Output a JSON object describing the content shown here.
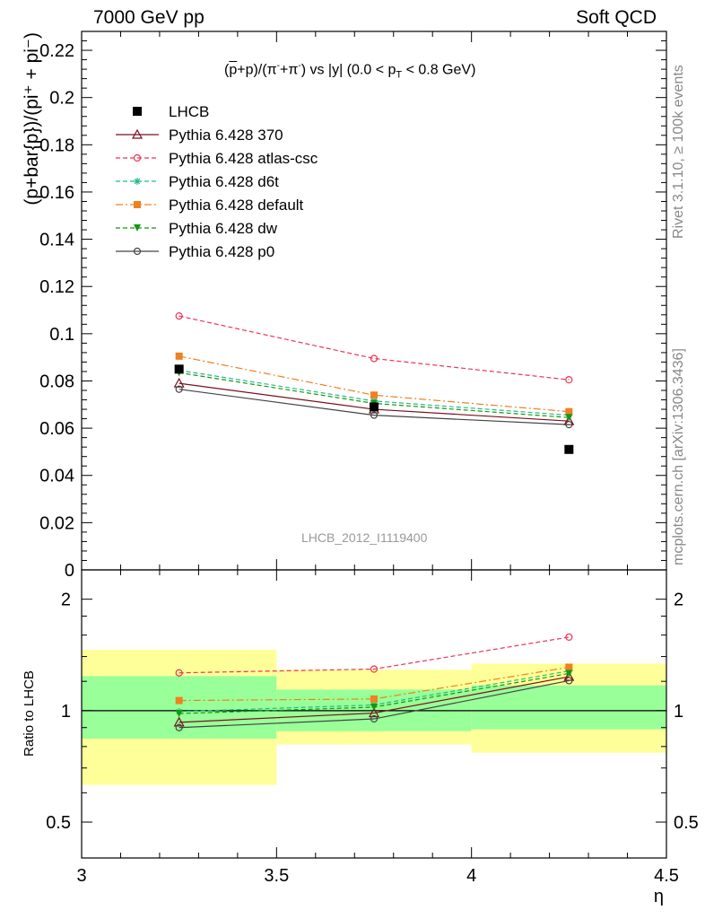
{
  "header": {
    "left": "7000 GeV pp",
    "right": "Soft QCD"
  },
  "side_labels": {
    "rivet": "Rivet 3.1.10, ≥ 100k events",
    "mcplots": "mcplots.cern.ch [arXiv:1306.3436]"
  },
  "watermark": "LHCB_2012_I1119400",
  "colors": {
    "data": "#000000",
    "p370": "#7a0f1f",
    "atlas_csc": "#ee3355",
    "d6t": "#22bb88",
    "default": "#f08020",
    "dw": "#119911",
    "p0": "#444444",
    "band_inner": "#99ff99",
    "band_outer": "#ffff99"
  },
  "chart_data": [
    {
      "panel": "main",
      "type": "line",
      "title": "(p̅+p)/(π⁻+π⁻) vs |y| (0.0 < p_T < 0.8 GeV)",
      "ylabel": "(p+bar{p})/(pi⁺ + pi⁻)",
      "xlim": [
        3.0,
        4.5
      ],
      "ylim": [
        0,
        0.228
      ],
      "yticks": [
        0,
        0.02,
        0.04,
        0.06,
        0.08,
        0.1,
        0.12,
        0.14,
        0.16,
        0.18,
        0.2,
        0.22
      ],
      "ytick_labels": [
        "0",
        "0.02",
        "0.04",
        "0.06",
        "0.08",
        "0.1",
        "0.12",
        "0.14",
        "0.16",
        "0.18",
        "0.2",
        "0.22"
      ],
      "legend_position": "top-left",
      "x": [
        3.25,
        3.75,
        4.25
      ],
      "series": [
        {
          "name": "LHCB",
          "key": "data",
          "marker": "square-filled",
          "line": "none",
          "values": [
            0.085,
            0.069,
            0.051
          ]
        },
        {
          "name": "Pythia 6.428 370",
          "key": "p370",
          "marker": "triangle-open",
          "line": "solid",
          "values": [
            0.079,
            0.068,
            0.063
          ]
        },
        {
          "name": "Pythia 6.428 atlas-csc",
          "key": "atlas_csc",
          "marker": "circle-open",
          "line": "dashed",
          "values": [
            0.1075,
            0.0895,
            0.0805
          ]
        },
        {
          "name": "Pythia 6.428 d6t",
          "key": "d6t",
          "marker": "star",
          "line": "dashed",
          "values": [
            0.0845,
            0.0715,
            0.0655
          ]
        },
        {
          "name": "Pythia 6.428 default",
          "key": "default",
          "marker": "square-filled",
          "line": "dashdot",
          "values": [
            0.0905,
            0.074,
            0.067
          ]
        },
        {
          "name": "Pythia 6.428 dw",
          "key": "dw",
          "marker": "triangle-down-filled",
          "line": "dashed",
          "values": [
            0.0835,
            0.0705,
            0.0645
          ]
        },
        {
          "name": "Pythia 6.428 p0",
          "key": "p0",
          "marker": "circle-open",
          "line": "solid",
          "values": [
            0.0765,
            0.0655,
            0.0615
          ]
        }
      ]
    },
    {
      "panel": "ratio",
      "type": "line",
      "ylabel": "Ratio to LHCB",
      "xlabel": "η",
      "xlim": [
        3.0,
        4.5
      ],
      "ylim": [
        0.4,
        2.4
      ],
      "ylog": true,
      "yticks": [
        0.5,
        1,
        2
      ],
      "ytick_labels": [
        "0.5",
        "1",
        "2"
      ],
      "xticks": [
        3,
        3.5,
        4,
        4.5
      ],
      "xtick_labels": [
        "3",
        "3.5",
        "4",
        "4.5"
      ],
      "bins": [
        [
          3.0,
          3.5
        ],
        [
          3.5,
          4.0
        ],
        [
          4.0,
          4.5
        ]
      ],
      "band_inner": [
        [
          0.84,
          1.24
        ],
        [
          0.88,
          1.14
        ],
        [
          0.89,
          1.17
        ]
      ],
      "band_outer": [
        [
          0.63,
          1.46
        ],
        [
          0.81,
          1.29
        ],
        [
          0.77,
          1.34
        ]
      ],
      "x": [
        3.25,
        3.75,
        4.25
      ],
      "series": [
        {
          "key": "p370",
          "values": [
            0.93,
            0.985,
            1.235
          ]
        },
        {
          "key": "atlas_csc",
          "values": [
            1.265,
            1.295,
            1.58
          ]
        },
        {
          "key": "d6t",
          "values": [
            0.994,
            1.036,
            1.28
          ]
        },
        {
          "key": "default",
          "values": [
            1.065,
            1.075,
            1.31
          ]
        },
        {
          "key": "dw",
          "values": [
            0.982,
            1.022,
            1.26
          ]
        },
        {
          "key": "p0",
          "values": [
            0.9,
            0.95,
            1.205
          ]
        }
      ]
    }
  ]
}
